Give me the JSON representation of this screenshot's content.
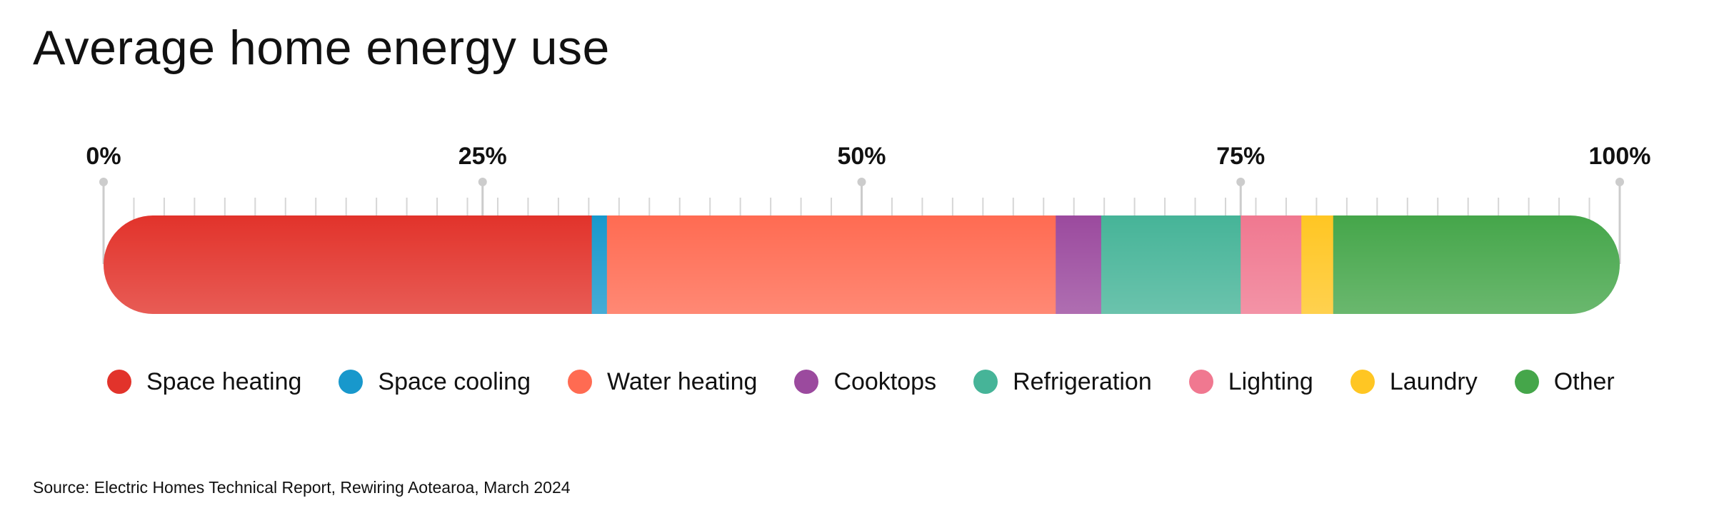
{
  "title": "Average home energy use",
  "source": "Source: Electric Homes Technical Report, Rewiring Aotearoa, March 2024",
  "chart_data": {
    "type": "bar",
    "orientation": "horizontal-stacked-100",
    "title": "Average home energy use",
    "xlim": [
      0,
      100
    ],
    "x_ticks": [
      {
        "value": 0,
        "label": "0%"
      },
      {
        "value": 25,
        "label": "25%"
      },
      {
        "value": 50,
        "label": "50%"
      },
      {
        "value": 75,
        "label": "75%"
      },
      {
        "value": 100,
        "label": "100%"
      }
    ],
    "minor_tick_step": 2,
    "legend_position": "bottom",
    "series": [
      {
        "name": "Space heating",
        "value": 32.2,
        "color": "#E2332B"
      },
      {
        "name": "Space cooling",
        "value": 1.0,
        "color": "#1898CC"
      },
      {
        "name": "Water heating",
        "value": 29.6,
        "color": "#FF6B52"
      },
      {
        "name": "Cooktops",
        "value": 3.0,
        "color": "#9B4A9E"
      },
      {
        "name": "Refrigeration",
        "value": 9.2,
        "color": "#46B498"
      },
      {
        "name": "Lighting",
        "value": 4.0,
        "color": "#F07890"
      },
      {
        "name": "Laundry",
        "value": 2.1,
        "color": "#FFC623"
      },
      {
        "name": "Other",
        "value": 18.9,
        "color": "#45A64A"
      }
    ]
  }
}
